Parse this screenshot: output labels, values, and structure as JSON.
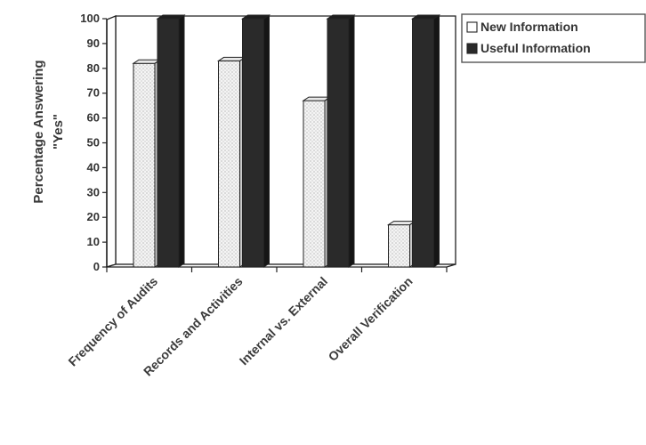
{
  "chart_data": {
    "type": "bar",
    "categories": [
      "Frequency of Audits",
      "Records and Activities",
      "Internal vs. External",
      "Overall Verification"
    ],
    "series": [
      {
        "name": "New Information",
        "values": [
          82,
          83,
          67,
          17
        ],
        "color": "#f3f3f3",
        "pattern": "dotted"
      },
      {
        "name": "Useful Information",
        "values": [
          100,
          100,
          100,
          100
        ],
        "color": "#2a2a2a"
      }
    ],
    "ylabel_line1": "Percentage Answering",
    "ylabel_line2": "\"Yes\"",
    "ylim": [
      0,
      100
    ],
    "yticks": [
      "0",
      "10",
      "20",
      "30",
      "40",
      "50",
      "60",
      "70",
      "80",
      "90",
      "100"
    ],
    "legend_position": "top-right",
    "three_d": true
  }
}
